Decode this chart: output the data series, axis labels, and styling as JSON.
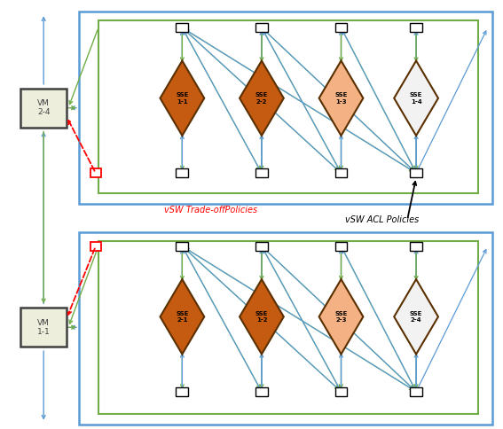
{
  "fig_width": 5.67,
  "fig_height": 4.84,
  "dpi": 100,
  "bg_color": "#ffffff",
  "blue_box_color": "#5b9bd5",
  "green_box_color": "#70ad47",
  "arrow_blue": "#5b9bd5",
  "arrow_green": "#70ad47",
  "diamond_colors_top": [
    "#c55a11",
    "#c55a11",
    "#f4b183",
    "#f2f2f2"
  ],
  "diamond_colors_bot": [
    "#c55a11",
    "#c55a11",
    "#f4b183",
    "#f2f2f2"
  ],
  "diamond_labels_top": [
    "SSE\n1-1",
    "SSE\n2-2",
    "SSE\n1-3",
    "SSE\n1-4"
  ],
  "diamond_labels_bot": [
    "SSE\n2-1",
    "SSE\n1-2",
    "SSE\n2-3",
    "SSE\n2-4"
  ],
  "vm_labels": [
    "VM\n2-4",
    "VM\n1-1"
  ],
  "label_tradeoff": "vSW Trade-offPolicies",
  "label_acl": "vSW ACL Policies"
}
